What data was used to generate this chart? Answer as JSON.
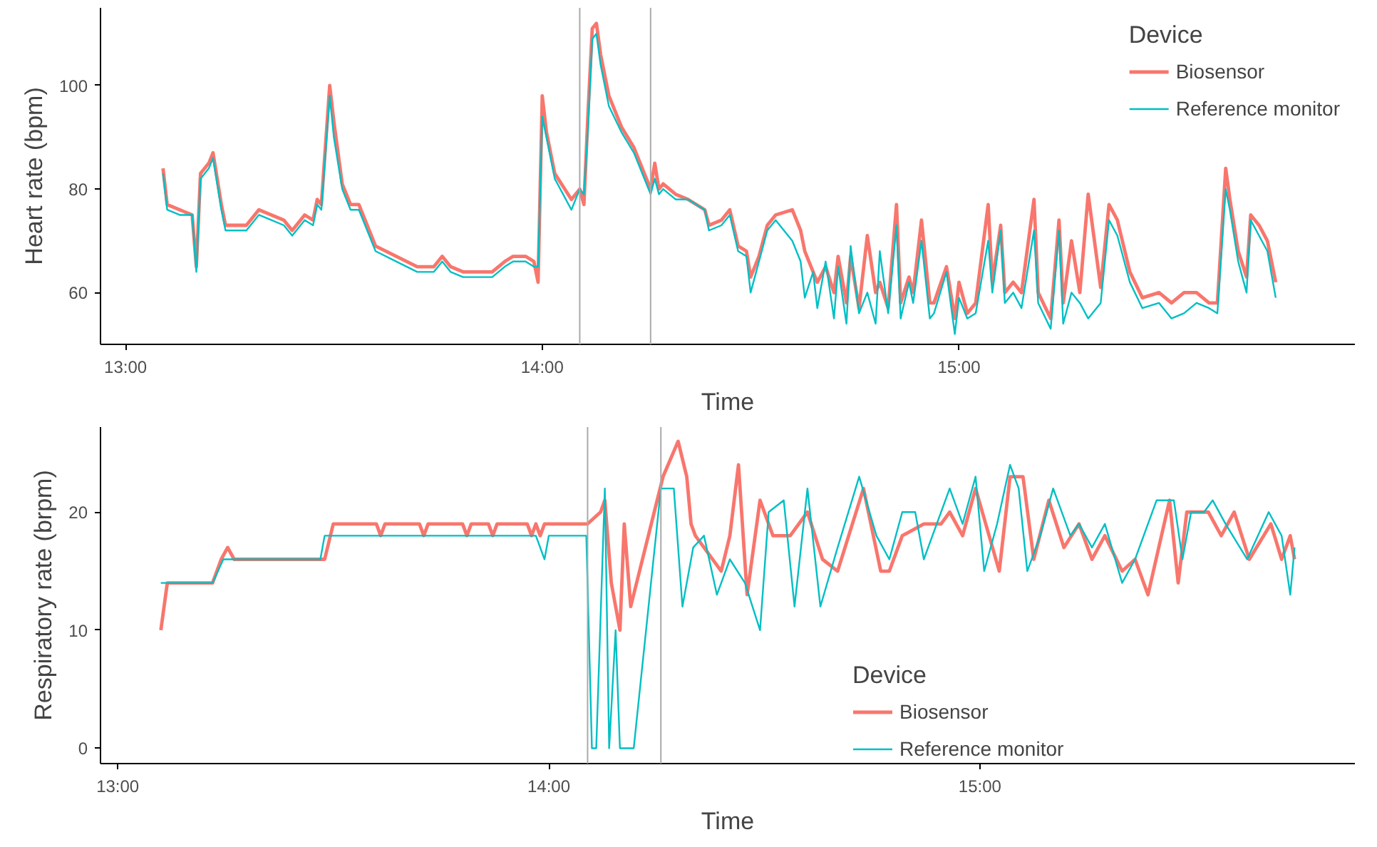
{
  "chart_data": [
    {
      "type": "line",
      "xlabel": "Time",
      "ylabel": "Heart rate (bpm)",
      "legend_title": "Device",
      "legend": "top right",
      "xlim": [
        12.94,
        15.95
      ],
      "ylim": [
        50,
        115
      ],
      "xticks": [
        {
          "value": 13,
          "label": "13:00"
        },
        {
          "value": 14,
          "label": "14:00"
        },
        {
          "value": 15,
          "label": "15:00"
        }
      ],
      "yticks": [
        60,
        80,
        100
      ],
      "ref_lines": [
        {
          "axis": "x",
          "value": 14.09,
          "color": "#aaaaaa"
        },
        {
          "axis": "x",
          "value": 14.26,
          "color": "#aaaaaa"
        }
      ],
      "series": [
        {
          "name": "Biosensor",
          "color": "#f8766d",
          "x": [
            13.09,
            13.1,
            13.13,
            13.16,
            13.17,
            13.18,
            13.2,
            13.21,
            13.23,
            13.24,
            13.29,
            13.32,
            13.35,
            13.38,
            13.4,
            13.43,
            13.45,
            13.46,
            13.47,
            13.49,
            13.5,
            13.52,
            13.54,
            13.56,
            13.58,
            13.6,
            13.65,
            13.7,
            13.74,
            13.76,
            13.78,
            13.81,
            13.88,
            13.91,
            13.93,
            13.96,
            13.98,
            13.99,
            14.0,
            14.01,
            14.03,
            14.07,
            14.09,
            14.1,
            14.11,
            14.12,
            14.13,
            14.14,
            14.16,
            14.19,
            14.22,
            14.26,
            14.27,
            14.28,
            14.29,
            14.32,
            14.35,
            14.39,
            14.4,
            14.43,
            14.45,
            14.47,
            14.49,
            14.5,
            14.52,
            14.54,
            14.56,
            14.6,
            14.62,
            14.63,
            14.65,
            14.66,
            14.68,
            14.7,
            14.71,
            14.73,
            14.74,
            14.76,
            14.78,
            14.8,
            14.81,
            14.83,
            14.85,
            14.86,
            14.88,
            14.89,
            14.91,
            14.93,
            14.94,
            14.97,
            14.99,
            15.0,
            15.02,
            15.04,
            15.07,
            15.08,
            15.1,
            15.11,
            15.13,
            15.15,
            15.18,
            15.19,
            15.22,
            15.24,
            15.25,
            15.27,
            15.29,
            15.31,
            15.34,
            15.36,
            15.38,
            15.41,
            15.44,
            15.48,
            15.51,
            15.54,
            15.57,
            15.6,
            15.62,
            15.64,
            15.65,
            15.67,
            15.69,
            15.7,
            15.72,
            15.74,
            15.76
          ],
          "values": [
            84,
            77,
            76,
            75,
            65,
            83,
            85,
            87,
            77,
            73,
            73,
            76,
            75,
            74,
            72,
            75,
            74,
            78,
            77,
            100,
            93,
            81,
            77,
            77,
            73,
            69,
            67,
            65,
            65,
            67,
            65,
            64,
            64,
            66,
            67,
            67,
            66,
            62,
            98,
            91,
            83,
            78,
            80,
            77,
            95,
            111,
            112,
            106,
            98,
            92,
            88,
            80,
            85,
            80,
            81,
            79,
            78,
            76,
            73,
            74,
            76,
            69,
            68,
            63,
            67,
            73,
            75,
            76,
            72,
            68,
            64,
            62,
            65,
            60,
            67,
            58,
            67,
            57,
            71,
            60,
            62,
            57,
            77,
            58,
            63,
            60,
            74,
            58,
            58,
            65,
            55,
            62,
            56,
            58,
            77,
            62,
            73,
            60,
            62,
            60,
            78,
            60,
            55,
            74,
            58,
            70,
            60,
            79,
            61,
            77,
            74,
            64,
            59,
            60,
            58,
            60,
            60,
            58,
            58,
            84,
            78,
            68,
            63,
            75,
            73,
            70,
            62
          ]
        },
        {
          "name": "Reference monitor",
          "color": "#00bfc4",
          "x": [
            13.09,
            13.1,
            13.13,
            13.16,
            13.17,
            13.18,
            13.2,
            13.21,
            13.23,
            13.24,
            13.29,
            13.32,
            13.35,
            13.38,
            13.4,
            13.43,
            13.45,
            13.46,
            13.47,
            13.49,
            13.5,
            13.52,
            13.54,
            13.56,
            13.58,
            13.6,
            13.65,
            13.7,
            13.74,
            13.76,
            13.78,
            13.81,
            13.88,
            13.91,
            13.93,
            13.96,
            13.98,
            13.99,
            14.0,
            14.01,
            14.03,
            14.07,
            14.09,
            14.1,
            14.11,
            14.12,
            14.13,
            14.14,
            14.16,
            14.19,
            14.22,
            14.26,
            14.27,
            14.28,
            14.29,
            14.32,
            14.35,
            14.39,
            14.4,
            14.43,
            14.45,
            14.47,
            14.49,
            14.5,
            14.52,
            14.54,
            14.56,
            14.6,
            14.62,
            14.63,
            14.65,
            14.66,
            14.68,
            14.7,
            14.71,
            14.73,
            14.74,
            14.76,
            14.78,
            14.8,
            14.81,
            14.83,
            14.85,
            14.86,
            14.88,
            14.89,
            14.91,
            14.93,
            14.94,
            14.97,
            14.99,
            15.0,
            15.02,
            15.04,
            15.07,
            15.08,
            15.1,
            15.11,
            15.13,
            15.15,
            15.18,
            15.19,
            15.22,
            15.24,
            15.25,
            15.27,
            15.29,
            15.31,
            15.34,
            15.36,
            15.38,
            15.41,
            15.44,
            15.48,
            15.51,
            15.54,
            15.57,
            15.6,
            15.62,
            15.64,
            15.65,
            15.67,
            15.69,
            15.7,
            15.72,
            15.74,
            15.76
          ],
          "values": [
            83,
            76,
            75,
            75,
            64,
            82,
            84,
            86,
            76,
            72,
            72,
            75,
            74,
            73,
            71,
            74,
            73,
            77,
            76,
            98,
            90,
            80,
            76,
            76,
            72,
            68,
            66,
            64,
            64,
            66,
            64,
            63,
            63,
            65,
            66,
            66,
            65,
            65,
            94,
            90,
            82,
            76,
            80,
            79,
            92,
            109,
            110,
            104,
            96,
            91,
            87,
            79,
            82,
            79,
            80,
            78,
            78,
            76,
            72,
            73,
            75,
            68,
            67,
            60,
            66,
            72,
            74,
            70,
            66,
            59,
            64,
            57,
            66,
            55,
            65,
            54,
            69,
            56,
            60,
            54,
            68,
            56,
            73,
            55,
            62,
            58,
            70,
            55,
            56,
            64,
            52,
            59,
            55,
            56,
            70,
            60,
            72,
            58,
            60,
            57,
            72,
            58,
            53,
            72,
            54,
            60,
            58,
            55,
            58,
            74,
            71,
            62,
            57,
            58,
            55,
            56,
            58,
            57,
            56,
            80,
            76,
            66,
            60,
            74,
            71,
            68,
            59
          ]
        }
      ]
    },
    {
      "type": "line",
      "xlabel": "Time",
      "ylabel": "Respiratory rate (brpm)",
      "legend_title": "Device",
      "legend": "bottom",
      "xlim": [
        12.96,
        15.87
      ],
      "ylim": [
        -1.3,
        27.2
      ],
      "xticks": [
        {
          "value": 13,
          "label": "13:00"
        },
        {
          "value": 14,
          "label": "14:00"
        },
        {
          "value": 15,
          "label": "15:00"
        }
      ],
      "yticks": [
        0,
        10,
        20
      ],
      "ref_lines": [
        {
          "axis": "x",
          "value": 14.09,
          "color": "#aaaaaa"
        },
        {
          "axis": "x",
          "value": 14.26,
          "color": "#aaaaaa"
        }
      ],
      "series": [
        {
          "name": "Biosensor",
          "color": "#f8766d",
          "x": [
            13.1,
            13.115,
            13.22,
            13.24,
            13.255,
            13.27,
            13.47,
            13.48,
            13.5,
            13.6,
            13.61,
            13.62,
            13.7,
            13.71,
            13.72,
            13.8,
            13.81,
            13.82,
            13.86,
            13.87,
            13.88,
            13.95,
            13.96,
            13.97,
            13.98,
            13.99,
            14.09,
            14.12,
            14.13,
            14.145,
            14.165,
            14.175,
            14.19,
            14.265,
            14.3,
            14.32,
            14.33,
            14.34,
            14.4,
            14.42,
            14.44,
            14.46,
            14.49,
            14.52,
            14.56,
            14.6,
            14.635,
            14.67,
            14.73,
            14.77,
            14.79,
            14.82,
            14.87,
            14.91,
            14.93,
            14.96,
            14.99,
            15.045,
            15.07,
            15.1,
            15.125,
            15.16,
            15.195,
            15.23,
            15.26,
            15.29,
            15.33,
            15.36,
            15.39,
            15.44,
            15.46,
            15.48,
            15.53,
            15.56,
            15.59,
            15.625,
            15.675,
            15.7,
            15.72,
            15.73
          ],
          "values": [
            10,
            14,
            14,
            16,
            17,
            16,
            16,
            16,
            19,
            19,
            18,
            19,
            19,
            18,
            19,
            19,
            18,
            19,
            19,
            18,
            19,
            19,
            18,
            19,
            18,
            19,
            19,
            20,
            21,
            14,
            10,
            19,
            12,
            23,
            26,
            23,
            19,
            18,
            15,
            18,
            24,
            13,
            21,
            18,
            18,
            20,
            16,
            15,
            22,
            15,
            15,
            18,
            19,
            19,
            20,
            18,
            22,
            15,
            23,
            23,
            16,
            21,
            17,
            19,
            16,
            18,
            15,
            16,
            13,
            21,
            14,
            20,
            20,
            18,
            20,
            16,
            19,
            16,
            18,
            16
          ]
        },
        {
          "name": "Reference monitor",
          "color": "#00bfc4",
          "x": [
            13.1,
            13.22,
            13.245,
            13.47,
            13.48,
            13.97,
            13.99,
            14.0,
            14.087,
            14.1,
            14.11,
            14.13,
            14.14,
            14.155,
            14.165,
            14.197,
            14.26,
            14.29,
            14.31,
            14.335,
            14.36,
            14.39,
            14.42,
            14.455,
            14.49,
            14.51,
            14.545,
            14.57,
            14.6,
            14.63,
            14.67,
            14.72,
            14.76,
            14.79,
            14.82,
            14.85,
            14.87,
            14.93,
            14.96,
            14.99,
            15.01,
            15.04,
            15.07,
            15.09,
            15.11,
            15.14,
            15.17,
            15.21,
            15.23,
            15.26,
            15.29,
            15.33,
            15.36,
            15.41,
            15.45,
            15.47,
            15.49,
            15.52,
            15.54,
            15.57,
            15.62,
            15.67,
            15.7,
            15.72,
            15.73
          ],
          "values": [
            14,
            14,
            16,
            16,
            18,
            18,
            16,
            18,
            18,
            0,
            0,
            22,
            0,
            10,
            0,
            0,
            22,
            22,
            12,
            17,
            18,
            13,
            16,
            14,
            10,
            20,
            21,
            12,
            22,
            12,
            17,
            23,
            18,
            16,
            20,
            20,
            16,
            22,
            19,
            23,
            15,
            19,
            24,
            22,
            15,
            18,
            22,
            18,
            19,
            17,
            19,
            14,
            16,
            21,
            21,
            16,
            20,
            20,
            21,
            19,
            16,
            20,
            18,
            13,
            17
          ]
        }
      ]
    }
  ]
}
